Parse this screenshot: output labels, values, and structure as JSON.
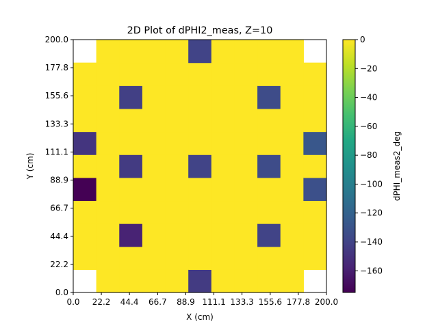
{
  "chart_data": {
    "type": "heatmap",
    "title": "2D Plot of dPHI2_meas, Z=10",
    "xlabel": "X (cm)",
    "ylabel": "Y (cm)",
    "colorbar_label": "dPHI_meas2_deg",
    "colormap": "viridis",
    "xlim": [
      0,
      200
    ],
    "ylim": [
      0,
      200
    ],
    "clim": [
      -175,
      0
    ],
    "x_tick_labels": [
      "0.0",
      "22.2",
      "44.4",
      "66.7",
      "88.9",
      "111.1",
      "133.3",
      "155.6",
      "177.8",
      "200.0"
    ],
    "y_tick_labels": [
      "0.0",
      "22.2",
      "44.4",
      "66.7",
      "88.9",
      "111.1",
      "133.3",
      "155.6",
      "177.8",
      "200.0"
    ],
    "colorbar_ticks": [
      0,
      -20,
      -40,
      -60,
      -80,
      -100,
      -120,
      -140,
      -160
    ],
    "colorbar_tick_labels": [
      "0",
      "−20",
      "−40",
      "−60",
      "−80",
      "−100",
      "−120",
      "−140",
      "−160"
    ],
    "grid": false,
    "n_cols": 11,
    "n_rows": 11,
    "background_value": 0,
    "missing_cells": [
      [
        0,
        0
      ],
      [
        10,
        0
      ],
      [
        0,
        10
      ],
      [
        10,
        10
      ]
    ],
    "cells": [
      {
        "col": 5,
        "row": 10,
        "value": -140
      },
      {
        "col": 2,
        "row": 8,
        "value": -142
      },
      {
        "col": 8,
        "row": 8,
        "value": -135
      },
      {
        "col": 0,
        "row": 6,
        "value": -148
      },
      {
        "col": 10,
        "row": 6,
        "value": -128
      },
      {
        "col": 2,
        "row": 5,
        "value": -145
      },
      {
        "col": 5,
        "row": 5,
        "value": -140
      },
      {
        "col": 8,
        "row": 5,
        "value": -135
      },
      {
        "col": 0,
        "row": 4,
        "value": -175
      },
      {
        "col": 10,
        "row": 4,
        "value": -132
      },
      {
        "col": 2,
        "row": 2,
        "value": -158
      },
      {
        "col": 8,
        "row": 2,
        "value": -140
      },
      {
        "col": 5,
        "row": 0,
        "value": -145
      }
    ]
  }
}
